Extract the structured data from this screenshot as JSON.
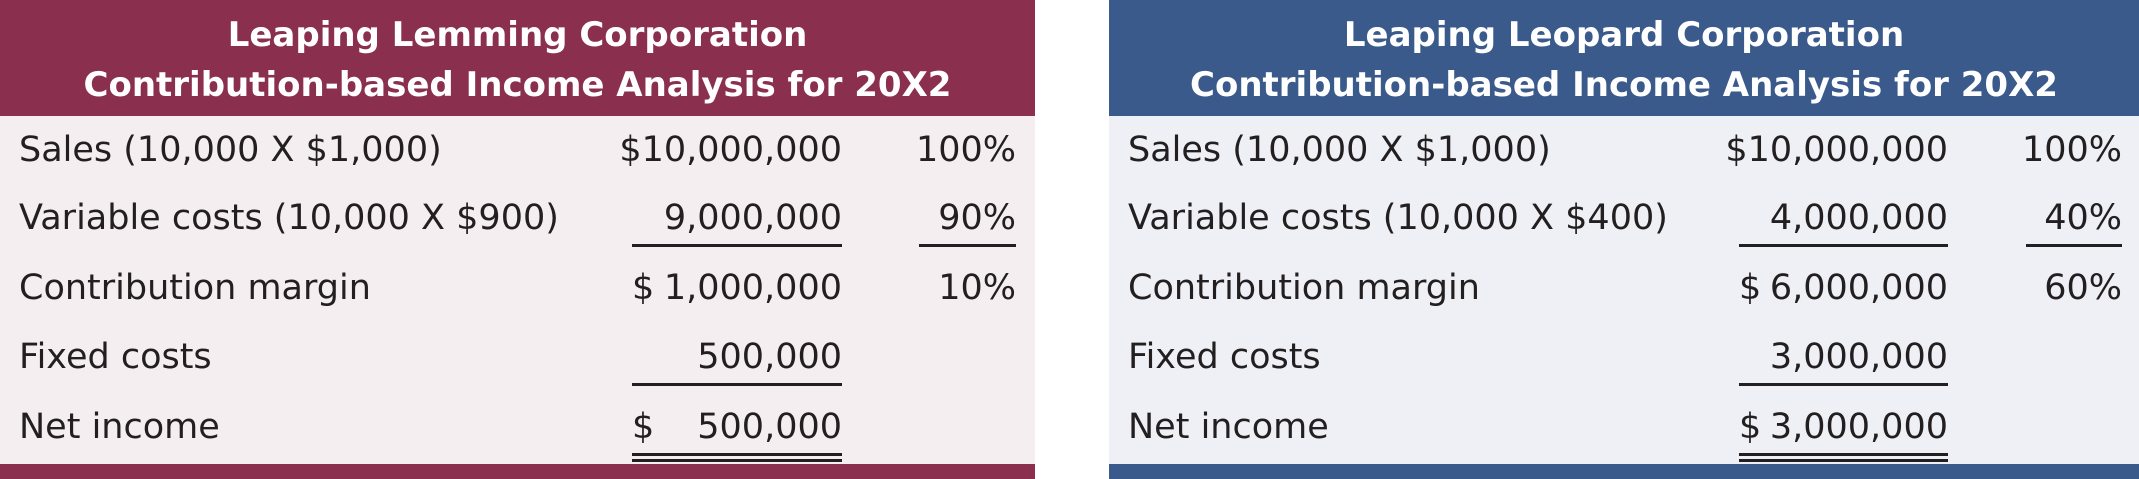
{
  "tables": [
    {
      "title_lines": [
        "Leaping Lemming Corporation",
        "Contribution-based Income Analysis for 20X2"
      ],
      "rows": [
        {
          "label": "Sales (10,000 X $1,000)",
          "amount": "$10,000,000",
          "percent": "100%"
        },
        {
          "label": "Variable costs (10,000 X $900)",
          "amount": "9,000,000",
          "percent": "90%"
        },
        {
          "label": "Contribution margin",
          "dollar": "$",
          "amount": "1,000,000",
          "percent": "10%"
        },
        {
          "label": "Fixed costs",
          "amount": "500,000"
        },
        {
          "label": "Net income",
          "dollar": "$",
          "amount": "500,000"
        }
      ]
    },
    {
      "title_lines": [
        "Leaping Leopard Corporation",
        "Contribution-based Income Analysis for 20X2"
      ],
      "rows": [
        {
          "label": "Sales (10,000 X $1,000)",
          "amount": "$10,000,000",
          "percent": "100%"
        },
        {
          "label": "Variable costs (10,000 X $400)",
          "amount": "4,000,000",
          "percent": "40%"
        },
        {
          "label": "Contribution margin",
          "dollar": "$",
          "amount": "6,000,000",
          "percent": "60%"
        },
        {
          "label": "Fixed costs",
          "amount": "3,000,000"
        },
        {
          "label": "Net income",
          "dollar": "$",
          "amount": "3,000,000"
        }
      ]
    }
  ]
}
